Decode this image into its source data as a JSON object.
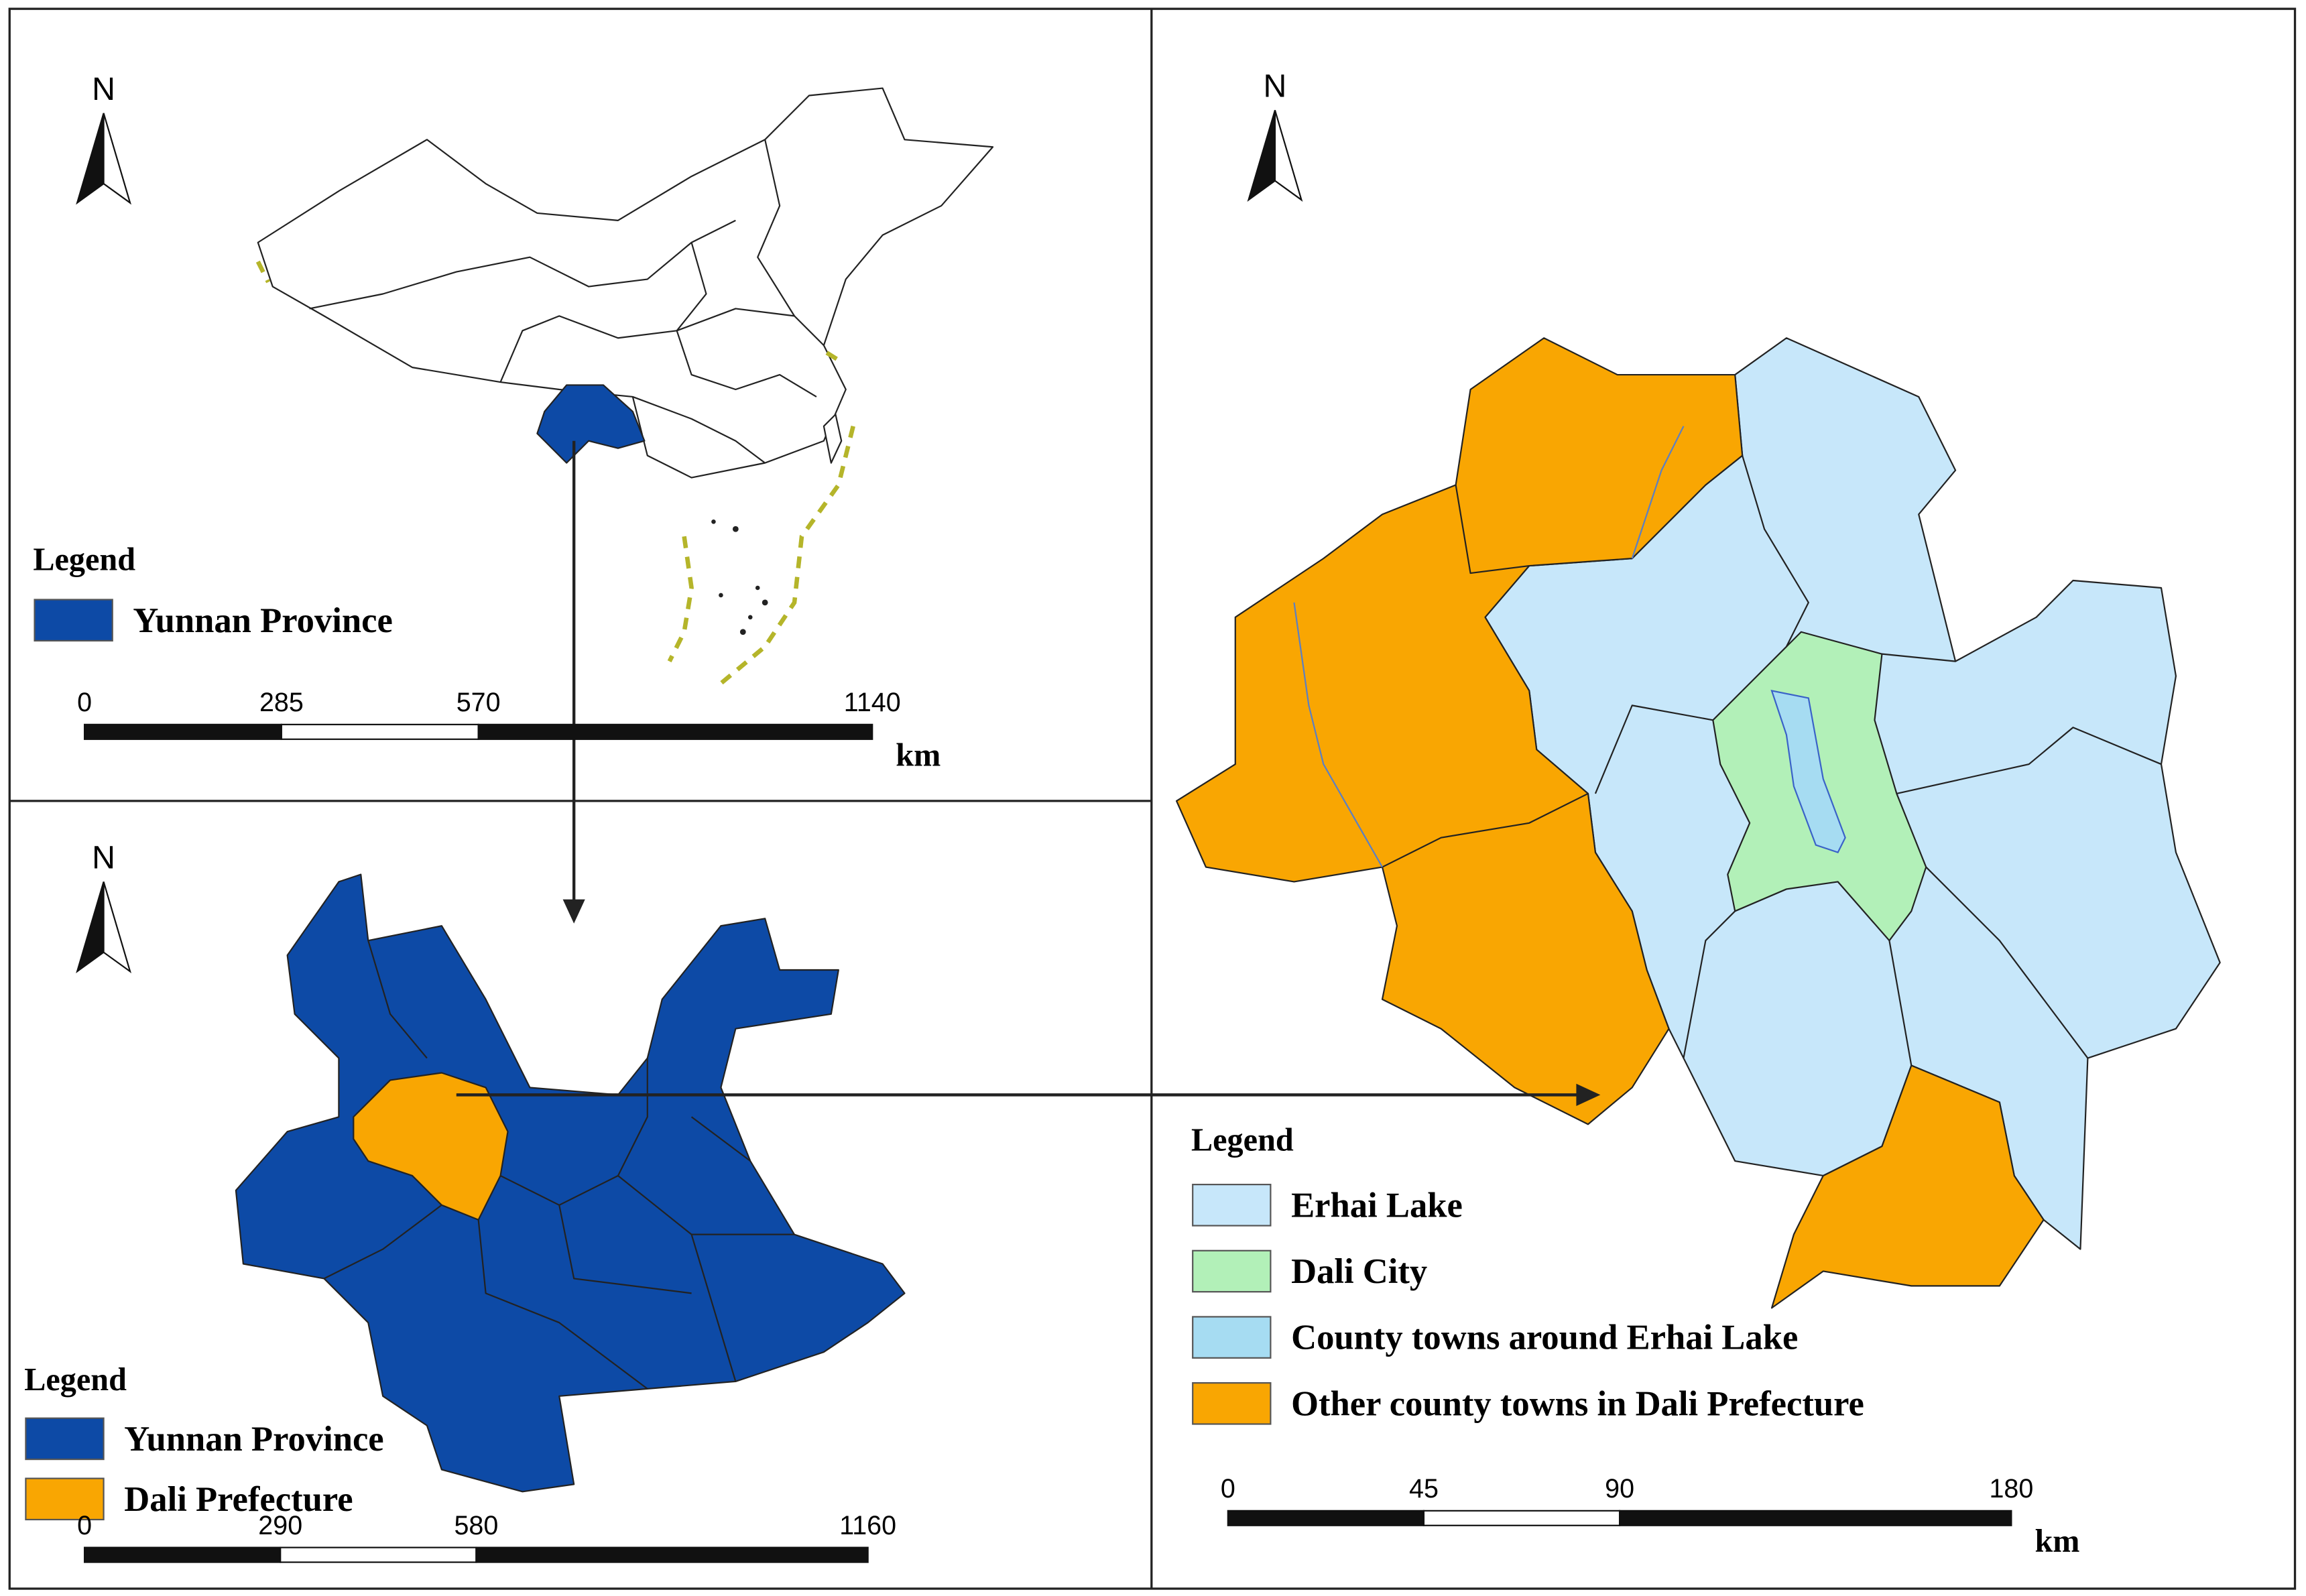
{
  "panels": [
    {
      "north": "N",
      "legend_title": "Legend",
      "legend": [
        {
          "label": "Yunnan Province",
          "color": "#0d4aa6"
        }
      ],
      "scale_bar": {
        "ticks": [
          0,
          285,
          570,
          1140
        ],
        "unit": "km"
      }
    },
    {
      "north": "N",
      "legend_title": "Legend",
      "legend": [
        {
          "label": "Yunnan Province",
          "color": "#0d4aa6"
        },
        {
          "label": "Dali Prefecture",
          "color": "#f9a602"
        }
      ],
      "scale_bar": {
        "ticks": [
          0,
          290,
          580,
          1160
        ]
      }
    },
    {
      "north": "N",
      "legend_title": "Legend",
      "legend": [
        {
          "label": "Erhai Lake",
          "color": "#c7e7fa"
        },
        {
          "label": "Dali City",
          "color": "#b2f0b8"
        },
        {
          "label": "County towns around Erhai Lake",
          "color": "#a6dcf2"
        },
        {
          "label": "Other county towns  in Dali Prefecture",
          "color": "#f9a602"
        }
      ],
      "scale_bar": {
        "ticks": [
          0,
          45,
          90,
          180
        ],
        "unit": "km"
      }
    }
  ]
}
